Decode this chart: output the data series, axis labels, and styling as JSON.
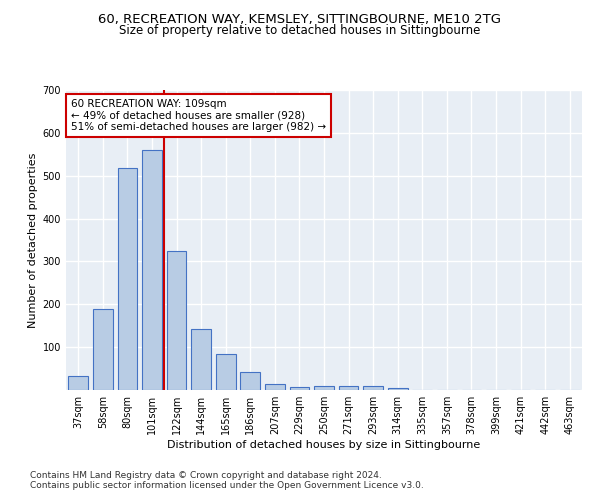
{
  "title1": "60, RECREATION WAY, KEMSLEY, SITTINGBOURNE, ME10 2TG",
  "title2": "Size of property relative to detached houses in Sittingbourne",
  "xlabel": "Distribution of detached houses by size in Sittingbourne",
  "ylabel": "Number of detached properties",
  "categories": [
    "37sqm",
    "58sqm",
    "80sqm",
    "101sqm",
    "122sqm",
    "144sqm",
    "165sqm",
    "186sqm",
    "207sqm",
    "229sqm",
    "250sqm",
    "271sqm",
    "293sqm",
    "314sqm",
    "335sqm",
    "357sqm",
    "378sqm",
    "399sqm",
    "421sqm",
    "442sqm",
    "463sqm"
  ],
  "values": [
    33,
    190,
    517,
    560,
    325,
    142,
    85,
    43,
    14,
    8,
    9,
    9,
    9,
    5,
    0,
    0,
    0,
    0,
    0,
    0,
    0
  ],
  "bar_color": "#b8cce4",
  "bar_edge_color": "#4472c4",
  "vline_color": "#cc0000",
  "vline_x": 3.5,
  "annotation_text": "60 RECREATION WAY: 109sqm\n← 49% of detached houses are smaller (928)\n51% of semi-detached houses are larger (982) →",
  "annotation_box_color": "#cc0000",
  "ylim": [
    0,
    700
  ],
  "yticks": [
    0,
    100,
    200,
    300,
    400,
    500,
    600,
    700
  ],
  "footnote1": "Contains HM Land Registry data © Crown copyright and database right 2024.",
  "footnote2": "Contains public sector information licensed under the Open Government Licence v3.0.",
  "background_color": "#e8eef5",
  "grid_color": "#ffffff",
  "title1_fontsize": 9.5,
  "title2_fontsize": 8.5,
  "axis_label_fontsize": 8,
  "tick_fontsize": 7,
  "annotation_fontsize": 7.5,
  "footnote_fontsize": 6.5
}
